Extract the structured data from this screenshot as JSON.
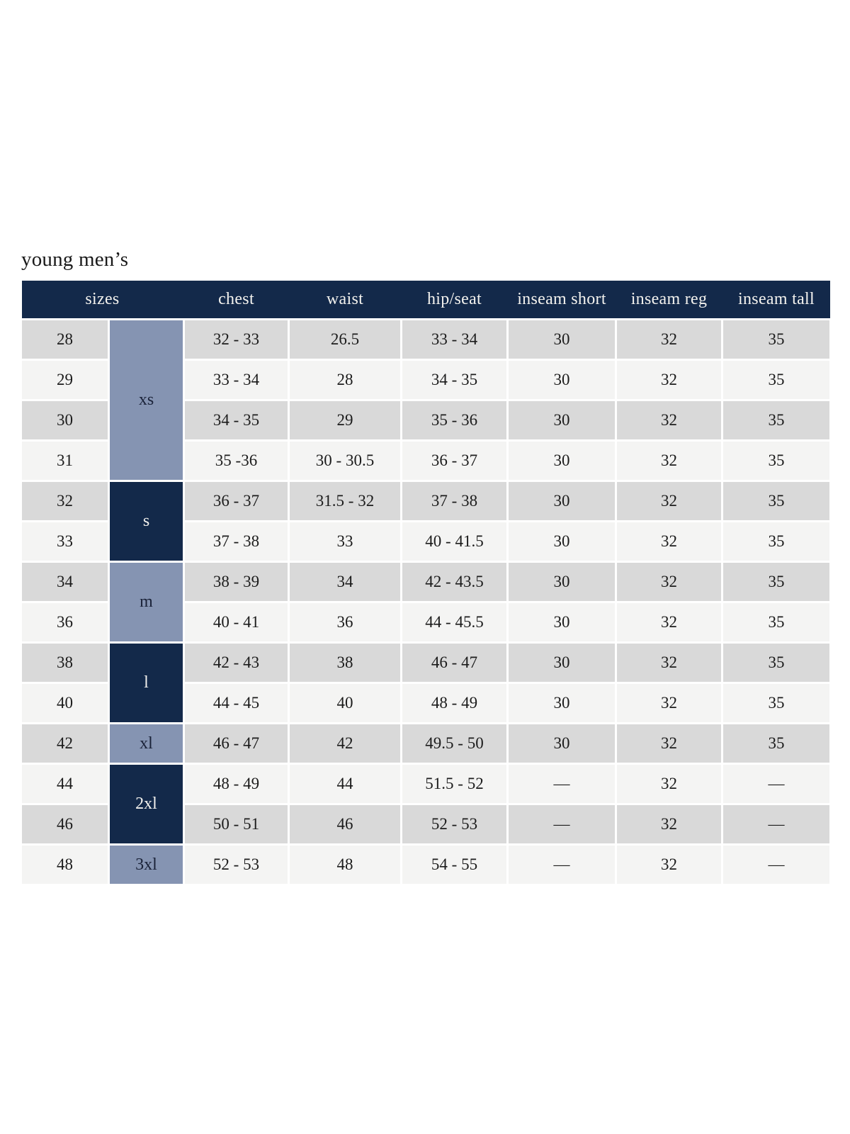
{
  "chart_data": {
    "type": "table",
    "title": "young men’s",
    "headers": [
      "sizes",
      "chest",
      "waist",
      "hip/seat",
      "inseam short",
      "inseam reg",
      "inseam tall"
    ],
    "size_groups": [
      {
        "label": "xs",
        "span": 4,
        "tone": "slate"
      },
      {
        "label": "s",
        "span": 2,
        "tone": "navy"
      },
      {
        "label": "m",
        "span": 2,
        "tone": "slate"
      },
      {
        "label": "l",
        "span": 2,
        "tone": "navy"
      },
      {
        "label": "xl",
        "span": 1,
        "tone": "slate"
      },
      {
        "label": "2xl",
        "span": 2,
        "tone": "navy"
      },
      {
        "label": "3xl",
        "span": 1,
        "tone": "slate"
      }
    ],
    "rows": [
      {
        "size": "28",
        "chest": "32 - 33",
        "waist": "26.5",
        "hip_seat": "33 - 34",
        "inseam_short": "30",
        "inseam_reg": "32",
        "inseam_tall": "35"
      },
      {
        "size": "29",
        "chest": "33 - 34",
        "waist": "28",
        "hip_seat": "34 - 35",
        "inseam_short": "30",
        "inseam_reg": "32",
        "inseam_tall": "35"
      },
      {
        "size": "30",
        "chest": "34 - 35",
        "waist": "29",
        "hip_seat": "35 - 36",
        "inseam_short": "30",
        "inseam_reg": "32",
        "inseam_tall": "35"
      },
      {
        "size": "31",
        "chest": "35 -36",
        "waist": "30 - 30.5",
        "hip_seat": "36 - 37",
        "inseam_short": "30",
        "inseam_reg": "32",
        "inseam_tall": "35"
      },
      {
        "size": "32",
        "chest": "36 - 37",
        "waist": "31.5 - 32",
        "hip_seat": "37 - 38",
        "inseam_short": "30",
        "inseam_reg": "32",
        "inseam_tall": "35"
      },
      {
        "size": "33",
        "chest": "37 - 38",
        "waist": "33",
        "hip_seat": "40 - 41.5",
        "inseam_short": "30",
        "inseam_reg": "32",
        "inseam_tall": "35"
      },
      {
        "size": "34",
        "chest": "38 - 39",
        "waist": "34",
        "hip_seat": "42 - 43.5",
        "inseam_short": "30",
        "inseam_reg": "32",
        "inseam_tall": "35"
      },
      {
        "size": "36",
        "chest": "40 - 41",
        "waist": "36",
        "hip_seat": "44 - 45.5",
        "inseam_short": "30",
        "inseam_reg": "32",
        "inseam_tall": "35"
      },
      {
        "size": "38",
        "chest": "42 - 43",
        "waist": "38",
        "hip_seat": "46 - 47",
        "inseam_short": "30",
        "inseam_reg": "32",
        "inseam_tall": "35"
      },
      {
        "size": "40",
        "chest": "44 - 45",
        "waist": "40",
        "hip_seat": "48 - 49",
        "inseam_short": "30",
        "inseam_reg": "32",
        "inseam_tall": "35"
      },
      {
        "size": "42",
        "chest": "46 - 47",
        "waist": "42",
        "hip_seat": "49.5 - 50",
        "inseam_short": "30",
        "inseam_reg": "32",
        "inseam_tall": "35"
      },
      {
        "size": "44",
        "chest": "48 - 49",
        "waist": "44",
        "hip_seat": "51.5 - 52",
        "inseam_short": "—",
        "inseam_reg": "32",
        "inseam_tall": "—"
      },
      {
        "size": "46",
        "chest": "50 - 51",
        "waist": "46",
        "hip_seat": "52 - 53",
        "inseam_short": "—",
        "inseam_reg": "32",
        "inseam_tall": "—"
      },
      {
        "size": "48",
        "chest": "52 - 53",
        "waist": "48",
        "hip_seat": "54 - 55",
        "inseam_short": "—",
        "inseam_reg": "32",
        "inseam_tall": "—"
      }
    ],
    "colors": {
      "navy": "#13294a",
      "slate": "#8594b2",
      "row_gray": "#d9d9d9",
      "row_light": "#f4f4f3",
      "header_text": "#f3f2ee",
      "cell_text": "#1c1c1c"
    },
    "layout_hints": {
      "row_shading": "alternating, first row gray",
      "grid": "white 3px separators",
      "header_position": "top"
    }
  }
}
